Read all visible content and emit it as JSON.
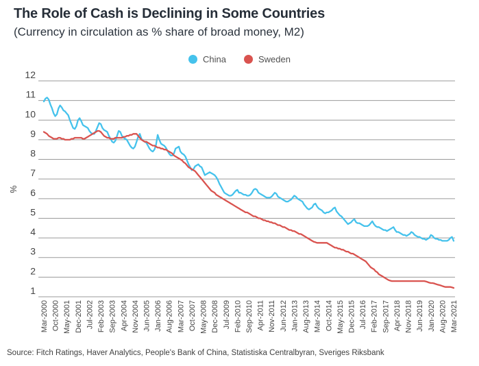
{
  "header": {
    "title": "The Role of Cash is Declining in Some Countries",
    "subtitle": "(Currency in circulation as % share of broad money, M2)"
  },
  "legend": {
    "items": [
      {
        "label": "China",
        "color": "#45C2EC"
      },
      {
        "label": "Sweden",
        "color": "#D9534F"
      }
    ]
  },
  "source": "Source: Fitch Ratings, Haver Analytics, People's Bank of China, Statistiska Centralbyran, Sveriges Riksbank",
  "chart_data": {
    "type": "line",
    "title": "The Role of Cash is Declining in Some Countries",
    "subtitle": "(Currency in circulation as % share of broad money, M2)",
    "xlabel": "",
    "ylabel": "%",
    "ylim": [
      1,
      12
    ],
    "y_ticks": [
      1,
      2,
      3,
      4,
      5,
      6,
      7,
      8,
      9,
      10,
      11,
      12
    ],
    "grid": "horizontal",
    "legend_position": "top-center",
    "frequency": "monthly",
    "x_start": "Mar-2000",
    "x_end": "Mar-2021",
    "months_per_x_tick": 7,
    "x_tick_labels": [
      "Mar-2000",
      "Oct-2000",
      "May-2001",
      "Dec-2001",
      "Jul-2002",
      "Feb-2003",
      "Sep-2003",
      "Apr-2004",
      "Nov-2004",
      "Jun-2005",
      "Jan-2006",
      "Aug-2006",
      "Mar-2007",
      "Oct-2007",
      "May-2008",
      "Dec-2008",
      "Jul-2009",
      "Feb-2010",
      "Sep-2010",
      "Apr-2011",
      "Nov-2011",
      "Jun-2012",
      "Jan-2013",
      "Aug-2013",
      "Mar-2014",
      "Oct-2014",
      "May-2015",
      "Dec-2015",
      "Jul-2016",
      "Feb-2017",
      "Sep-2017",
      "Apr-2018",
      "Nov-2018",
      "Jun-2019",
      "Jan-2020",
      "Aug-2020",
      "Mar-2021"
    ],
    "series": [
      {
        "name": "China",
        "color": "#45C2EC",
        "values": [
          10.95,
          11.1,
          11.15,
          11.05,
          10.8,
          10.6,
          10.35,
          10.2,
          10.3,
          10.6,
          10.75,
          10.65,
          10.5,
          10.45,
          10.35,
          10.25,
          10.0,
          9.8,
          9.6,
          9.55,
          9.7,
          10.0,
          10.1,
          9.95,
          9.75,
          9.7,
          9.65,
          9.6,
          9.45,
          9.35,
          9.3,
          9.3,
          9.45,
          9.65,
          9.85,
          9.8,
          9.6,
          9.5,
          9.45,
          9.4,
          9.2,
          9.05,
          8.9,
          8.85,
          8.95,
          9.2,
          9.45,
          9.4,
          9.2,
          9.1,
          9.05,
          9.0,
          8.85,
          8.7,
          8.6,
          8.55,
          8.65,
          8.9,
          9.15,
          9.3,
          9.05,
          8.95,
          8.9,
          8.85,
          8.7,
          8.55,
          8.45,
          8.4,
          8.5,
          8.75,
          9.25,
          9.0,
          8.8,
          8.75,
          8.7,
          8.6,
          8.45,
          8.3,
          8.2,
          8.2,
          8.3,
          8.55,
          8.6,
          8.65,
          8.4,
          8.3,
          8.25,
          8.15,
          7.95,
          7.75,
          7.6,
          7.45,
          7.5,
          7.65,
          7.7,
          7.75,
          7.65,
          7.6,
          7.4,
          7.2,
          7.25,
          7.3,
          7.35,
          7.3,
          7.25,
          7.2,
          7.1,
          6.95,
          6.75,
          6.6,
          6.45,
          6.3,
          6.25,
          6.2,
          6.15,
          6.15,
          6.2,
          6.3,
          6.4,
          6.45,
          6.3,
          6.3,
          6.25,
          6.2,
          6.2,
          6.15,
          6.15,
          6.2,
          6.3,
          6.45,
          6.5,
          6.45,
          6.3,
          6.25,
          6.2,
          6.15,
          6.1,
          6.05,
          6.05,
          6.05,
          6.1,
          6.2,
          6.3,
          6.25,
          6.1,
          6.05,
          6.0,
          5.95,
          5.9,
          5.85,
          5.85,
          5.9,
          5.95,
          6.05,
          6.15,
          6.1,
          6.0,
          5.95,
          5.9,
          5.85,
          5.7,
          5.6,
          5.5,
          5.45,
          5.5,
          5.55,
          5.7,
          5.75,
          5.6,
          5.5,
          5.45,
          5.4,
          5.3,
          5.25,
          5.3,
          5.3,
          5.35,
          5.4,
          5.5,
          5.55,
          5.35,
          5.25,
          5.15,
          5.1,
          5.0,
          4.9,
          4.8,
          4.7,
          4.75,
          4.8,
          4.9,
          4.95,
          4.8,
          4.75,
          4.75,
          4.7,
          4.65,
          4.6,
          4.6,
          4.6,
          4.65,
          4.75,
          4.85,
          4.7,
          4.6,
          4.55,
          4.55,
          4.5,
          4.45,
          4.4,
          4.4,
          4.35,
          4.4,
          4.45,
          4.5,
          4.55,
          4.4,
          4.3,
          4.3,
          4.25,
          4.2,
          4.15,
          4.15,
          4.1,
          4.15,
          4.2,
          4.3,
          4.25,
          4.15,
          4.1,
          4.05,
          4.05,
          4.0,
          3.95,
          3.95,
          3.9,
          3.95,
          4.0,
          4.15,
          4.1,
          4.0,
          3.95,
          3.95,
          3.9,
          3.9,
          3.85,
          3.85,
          3.85,
          3.85,
          3.9,
          4.0,
          4.05,
          3.85
        ]
      },
      {
        "name": "Sweden",
        "color": "#D9534F",
        "values": [
          9.4,
          9.35,
          9.3,
          9.2,
          9.15,
          9.1,
          9.05,
          9.05,
          9.05,
          9.1,
          9.1,
          9.05,
          9.05,
          9.0,
          9.0,
          9.0,
          9.0,
          9.05,
          9.05,
          9.1,
          9.1,
          9.1,
          9.1,
          9.1,
          9.05,
          9.05,
          9.1,
          9.15,
          9.2,
          9.25,
          9.3,
          9.35,
          9.4,
          9.45,
          9.45,
          9.4,
          9.3,
          9.2,
          9.15,
          9.1,
          9.1,
          9.05,
          9.05,
          9.05,
          9.1,
          9.1,
          9.1,
          9.1,
          9.1,
          9.15,
          9.15,
          9.2,
          9.2,
          9.25,
          9.25,
          9.3,
          9.3,
          9.3,
          9.2,
          9.1,
          9.0,
          8.95,
          8.9,
          8.9,
          8.85,
          8.8,
          8.75,
          8.7,
          8.7,
          8.65,
          8.6,
          8.6,
          8.55,
          8.55,
          8.5,
          8.5,
          8.45,
          8.4,
          8.35,
          8.3,
          8.2,
          8.15,
          8.1,
          8.05,
          8.0,
          7.95,
          7.85,
          7.8,
          7.7,
          7.6,
          7.55,
          7.5,
          7.45,
          7.4,
          7.3,
          7.2,
          7.1,
          7.0,
          6.9,
          6.8,
          6.7,
          6.6,
          6.5,
          6.4,
          6.35,
          6.3,
          6.2,
          6.15,
          6.1,
          6.05,
          6.0,
          5.95,
          5.9,
          5.85,
          5.8,
          5.75,
          5.7,
          5.65,
          5.6,
          5.55,
          5.5,
          5.45,
          5.4,
          5.35,
          5.3,
          5.3,
          5.25,
          5.2,
          5.15,
          5.1,
          5.1,
          5.05,
          5.0,
          5.0,
          4.95,
          4.9,
          4.9,
          4.85,
          4.85,
          4.8,
          4.8,
          4.75,
          4.75,
          4.7,
          4.65,
          4.65,
          4.6,
          4.55,
          4.55,
          4.5,
          4.45,
          4.4,
          4.4,
          4.35,
          4.35,
          4.3,
          4.25,
          4.2,
          4.2,
          4.15,
          4.1,
          4.05,
          4.0,
          3.95,
          3.9,
          3.85,
          3.8,
          3.78,
          3.75,
          3.75,
          3.75,
          3.75,
          3.75,
          3.75,
          3.75,
          3.7,
          3.65,
          3.6,
          3.55,
          3.5,
          3.5,
          3.45,
          3.45,
          3.4,
          3.4,
          3.35,
          3.3,
          3.3,
          3.25,
          3.2,
          3.2,
          3.15,
          3.1,
          3.05,
          3.0,
          2.95,
          2.9,
          2.85,
          2.8,
          2.7,
          2.6,
          2.5,
          2.45,
          2.4,
          2.3,
          2.25,
          2.15,
          2.1,
          2.05,
          2.0,
          1.95,
          1.9,
          1.85,
          1.82,
          1.8,
          1.8,
          1.8,
          1.8,
          1.8,
          1.8,
          1.8,
          1.8,
          1.8,
          1.8,
          1.8,
          1.8,
          1.8,
          1.8,
          1.8,
          1.8,
          1.8,
          1.8,
          1.8,
          1.8,
          1.8,
          1.78,
          1.75,
          1.72,
          1.7,
          1.7,
          1.68,
          1.65,
          1.62,
          1.6,
          1.58,
          1.55,
          1.52,
          1.5,
          1.5,
          1.5,
          1.5,
          1.48,
          1.45
        ]
      }
    ]
  }
}
